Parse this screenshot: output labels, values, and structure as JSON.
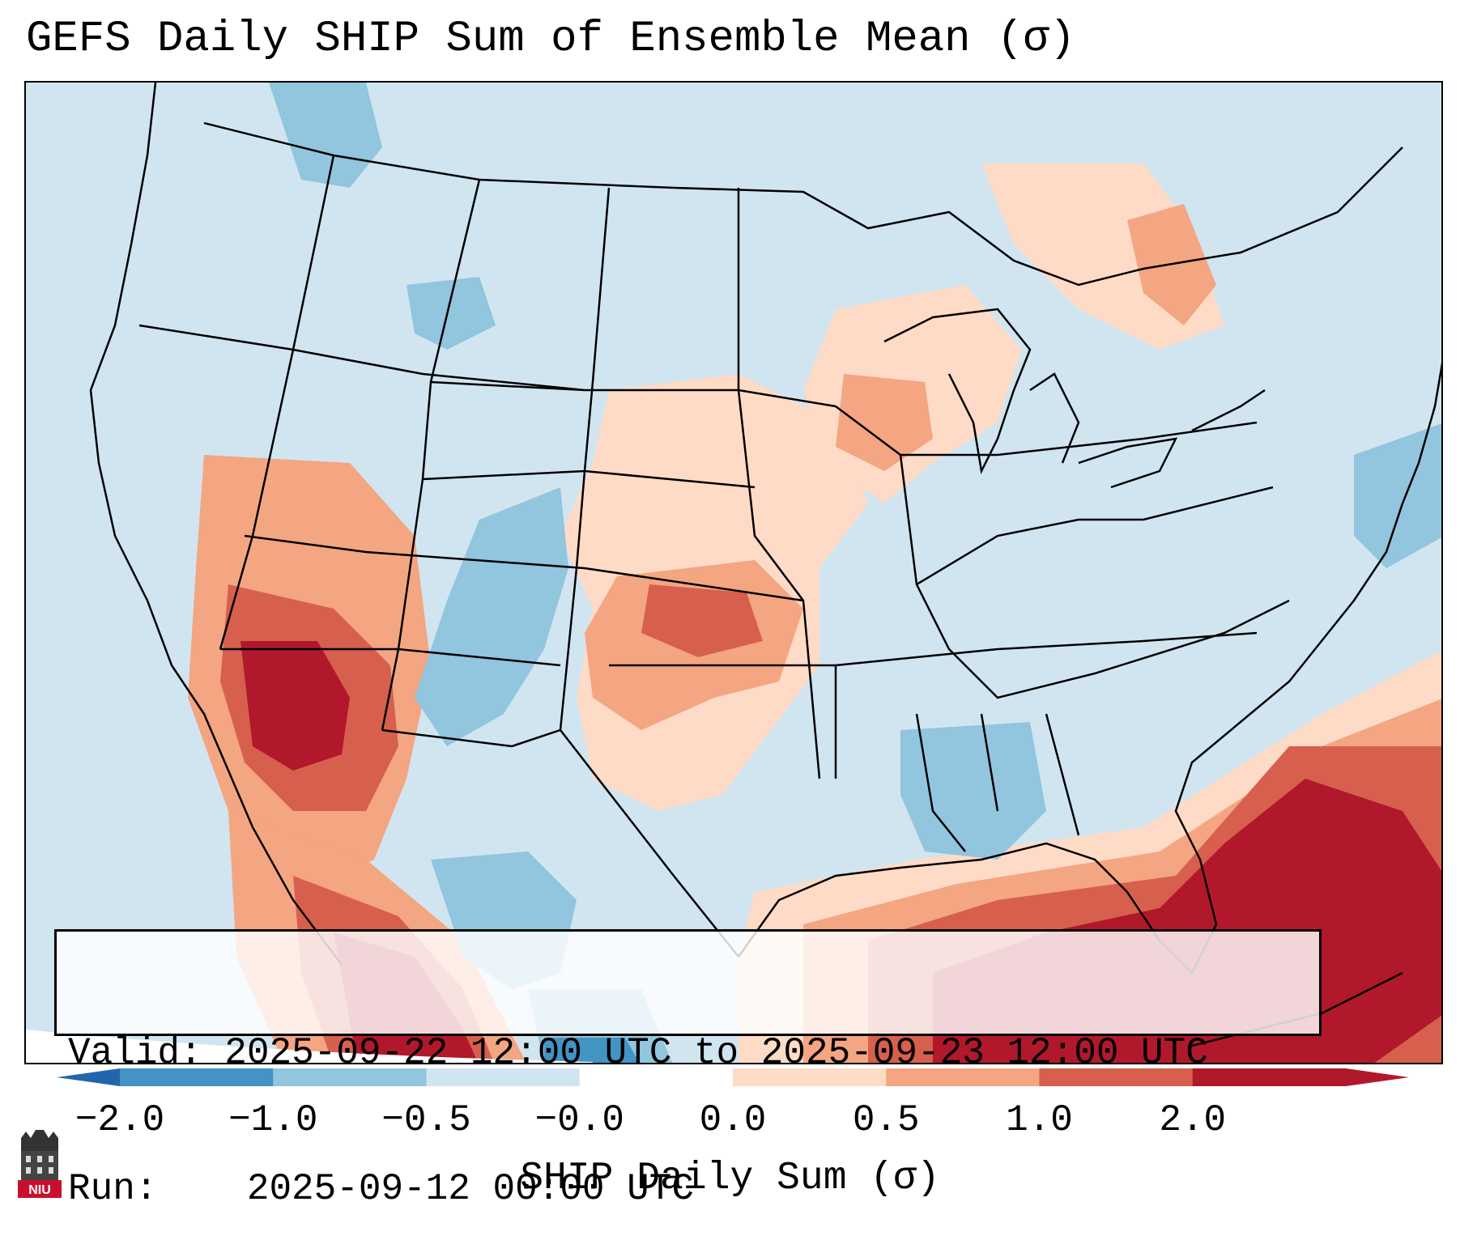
{
  "title": "GEFS Daily SHIP Sum of Ensemble Mean (σ)",
  "info": {
    "valid_label": "Valid:",
    "valid_value": "2025-09-22 12:00 UTC to 2025-09-23 12:00 UTC",
    "run_label": "Run:",
    "run_value": "2025-09-12 00:00 UTC"
  },
  "colorbar": {
    "label": "SHIP Daily Sum (σ)",
    "ticks": [
      "−2.0",
      "−1.0",
      "−0.5",
      "−0.0",
      "0.0",
      "0.5",
      "1.0",
      "2.0"
    ],
    "colors": [
      "#4393c3",
      "#92c5de",
      "#d1e5f0",
      "#ffffff",
      "#fddbc7",
      "#f4a582",
      "#d6604d",
      "#b2182b"
    ],
    "extend_low_color": "#2166ac",
    "extend_high_color": "#b2182b"
  },
  "map": {
    "background_color": "#d1e5f0",
    "boundary_color": "#000000"
  },
  "logo": {
    "text": "NIU",
    "color": "#c8102e"
  }
}
